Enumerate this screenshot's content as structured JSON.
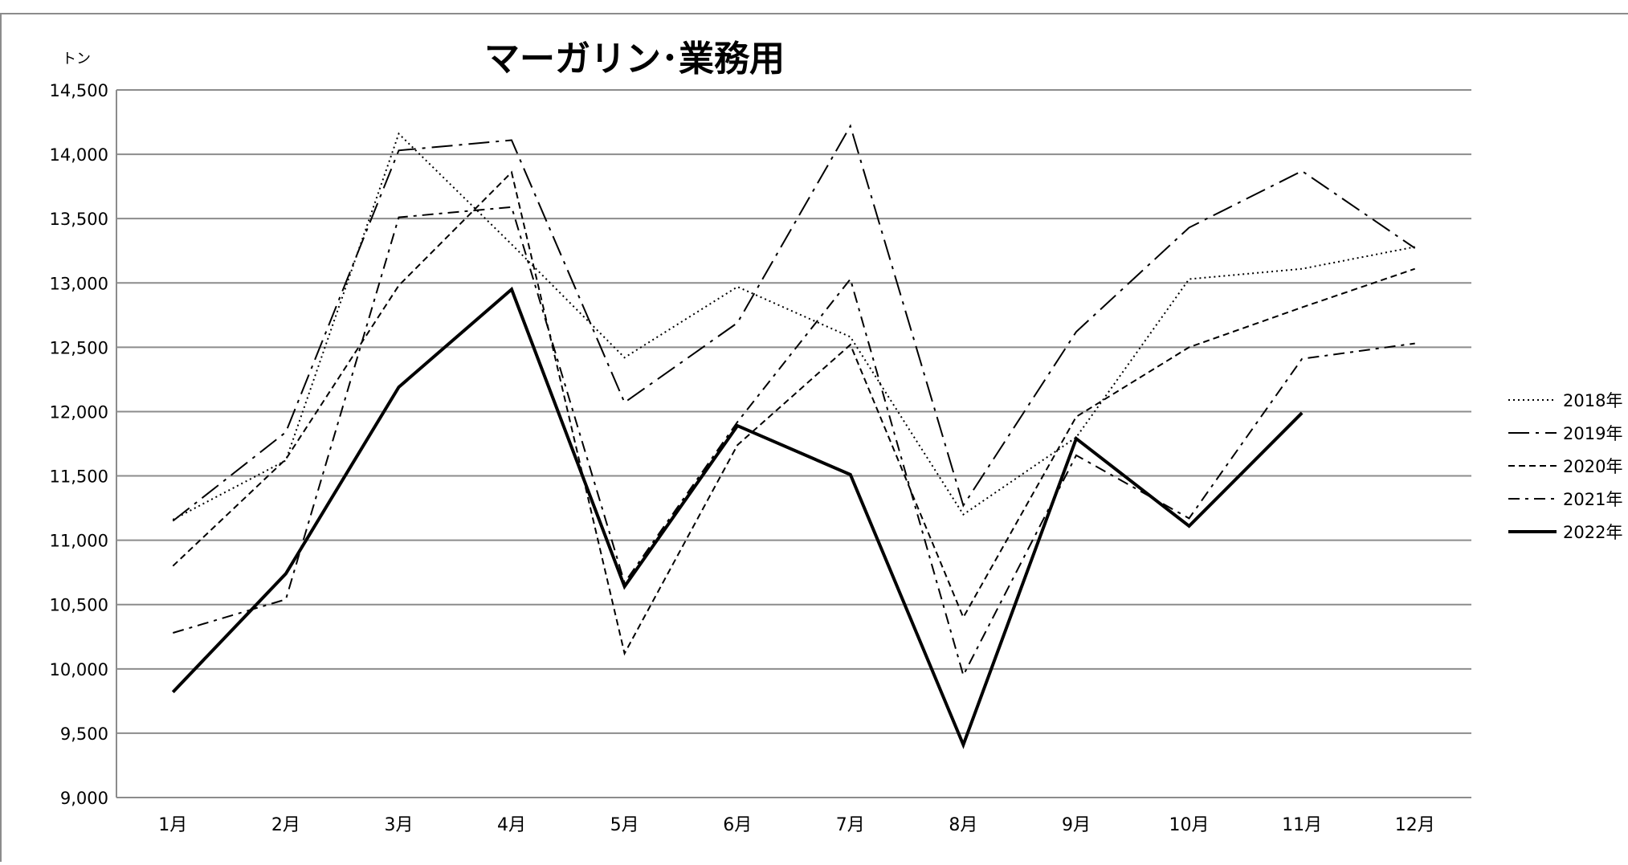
{
  "chart_data": {
    "type": "line",
    "title": "マーガリン･業務用",
    "ylabel": "トン",
    "xlabel": "",
    "categories": [
      "1月",
      "2月",
      "3月",
      "4月",
      "5月",
      "6月",
      "7月",
      "8月",
      "9月",
      "10月",
      "11月",
      "12月"
    ],
    "ylim": [
      9000,
      14500
    ],
    "yticks": [
      9000,
      9500,
      10000,
      10500,
      11000,
      11500,
      12000,
      12500,
      13000,
      13500,
      14000,
      14500
    ],
    "ytick_labels": [
      "9,000",
      "9,500",
      "10,000",
      "10,500",
      "11,000",
      "11,500",
      "12,000",
      "12,500",
      "13,000",
      "13,500",
      "14,000",
      "14,500"
    ],
    "grid": true,
    "legend_position": "right",
    "series": [
      {
        "name": "2018年",
        "dash": "dotted",
        "color": "#000000",
        "values": [
          11160,
          11620,
          14160,
          13300,
          12420,
          12970,
          12580,
          11200,
          11800,
          13030,
          13110,
          13280
        ]
      },
      {
        "name": "2019年",
        "dash": "dash-dot-dot",
        "color": "#000000",
        "values": [
          11150,
          11840,
          14030,
          14110,
          12070,
          12690,
          14220,
          11270,
          12620,
          13430,
          13870,
          13270
        ]
      },
      {
        "name": "2020年",
        "dash": "dashed",
        "color": "#000000",
        "values": [
          10800,
          11630,
          12980,
          13860,
          10120,
          11740,
          12520,
          10400,
          11960,
          12500,
          12810,
          13110
        ]
      },
      {
        "name": "2021年",
        "dash": "dash-dot",
        "color": "#000000",
        "values": [
          10280,
          10540,
          13510,
          13590,
          10670,
          11920,
          13030,
          9950,
          11660,
          11170,
          12410,
          12530
        ]
      },
      {
        "name": "2022年",
        "dash": "solid",
        "color": "#000000",
        "values": [
          9820,
          10740,
          12190,
          12950,
          10640,
          11890,
          11510,
          9410,
          11790,
          11110,
          11990,
          null
        ]
      }
    ]
  }
}
